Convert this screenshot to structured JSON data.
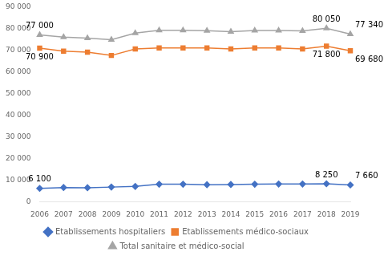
{
  "chart_data": {
    "type": "line",
    "categories": [
      "2006",
      "2007",
      "2008",
      "2009",
      "2010",
      "2011",
      "2012",
      "2013",
      "2014",
      "2015",
      "2016",
      "2017",
      "2018",
      "2019"
    ],
    "series": [
      {
        "name": "Total sanitaire et médico-social",
        "color": "#A5A5A5",
        "marker": "triangle",
        "values": [
          77000,
          76000,
          75500,
          74800,
          77800,
          79100,
          79100,
          78900,
          78500,
          79000,
          79000,
          78800,
          80050,
          77340
        ]
      },
      {
        "name": "Etablissements médico-sociaux",
        "color": "#ED7D31",
        "marker": "square",
        "values": [
          70900,
          69500,
          69000,
          67500,
          70500,
          71000,
          71000,
          71000,
          70500,
          71000,
          71000,
          70500,
          71800,
          69680
        ]
      },
      {
        "name": "Etablissements hospitaliers",
        "color": "#4472C4",
        "marker": "diamond",
        "values": [
          6100,
          6500,
          6400,
          6700,
          7000,
          8000,
          8000,
          7800,
          7900,
          8000,
          8100,
          8100,
          8250,
          7660
        ]
      }
    ],
    "annotations": [
      {
        "text": "6 100",
        "x": "2006",
        "y": 6100
      },
      {
        "text": "8 250",
        "x": "2018",
        "y": 8250
      },
      {
        "text": "7 660",
        "x": "2019",
        "y": 7660
      },
      {
        "text": "70 900",
        "x": "2006",
        "y": 70900
      },
      {
        "text": "71 800",
        "x": "2018",
        "y": 71800
      },
      {
        "text": "69 680",
        "x": "2019",
        "y": 69680
      },
      {
        "text": "77 000",
        "x": "2006",
        "y": 77000
      },
      {
        "text": "80 050",
        "x": "2018",
        "y": 80050
      },
      {
        "text": "77 340",
        "x": "2019",
        "y": 77340
      }
    ],
    "ylim": [
      0,
      90000
    ],
    "yticks": [
      0,
      {
        "value": 10000,
        "label": "10 000"
      },
      {
        "value": 20000,
        "label": "20 000"
      },
      {
        "value": 30000,
        "label": "30 000"
      },
      {
        "value": 40000,
        "label": "40 000"
      },
      {
        "value": 50000,
        "label": "50 000"
      },
      {
        "value": 60000,
        "label": "60 000"
      },
      {
        "value": 70000,
        "label": "70 000"
      },
      {
        "value": 80000,
        "label": "80 000"
      },
      {
        "value": 90000,
        "label": "90 000"
      }
    ],
    "grid": false,
    "legend": "bottom"
  }
}
